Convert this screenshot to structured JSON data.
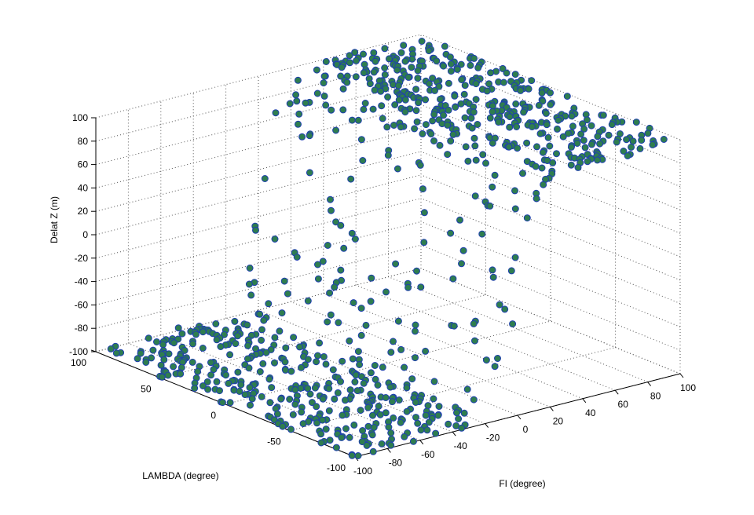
{
  "chart_data": {
    "type": "scatter",
    "projection": "3d",
    "xlabel": "FI (degree)",
    "ylabel": "LAMBDA (degree)",
    "zlabel": "Delat Z (m)",
    "xlim": [
      -100,
      100
    ],
    "ylim": [
      -100,
      100
    ],
    "zlim": [
      -100,
      100
    ],
    "x_ticks": [
      "-100",
      "-80",
      "-60",
      "-40",
      "-20",
      "0",
      "20",
      "40",
      "60",
      "80",
      "100"
    ],
    "y_ticks": [
      "-100",
      "-50",
      "0",
      "50",
      "100"
    ],
    "z_ticks": [
      "100",
      "80",
      "60",
      "40",
      "20",
      "0",
      "-20",
      "-40",
      "-60",
      "-80",
      "-100"
    ],
    "grid": true,
    "marker_face": "#2e7d4f",
    "marker_edge": "#1f3fb0",
    "surface_description": "delta_z ≈ -100 for FI < 0, rising to +100 for FI > 0 (step at FI = 0), points scattered over FI, LAMBDA in [-100, 100]",
    "point_count": 900
  }
}
